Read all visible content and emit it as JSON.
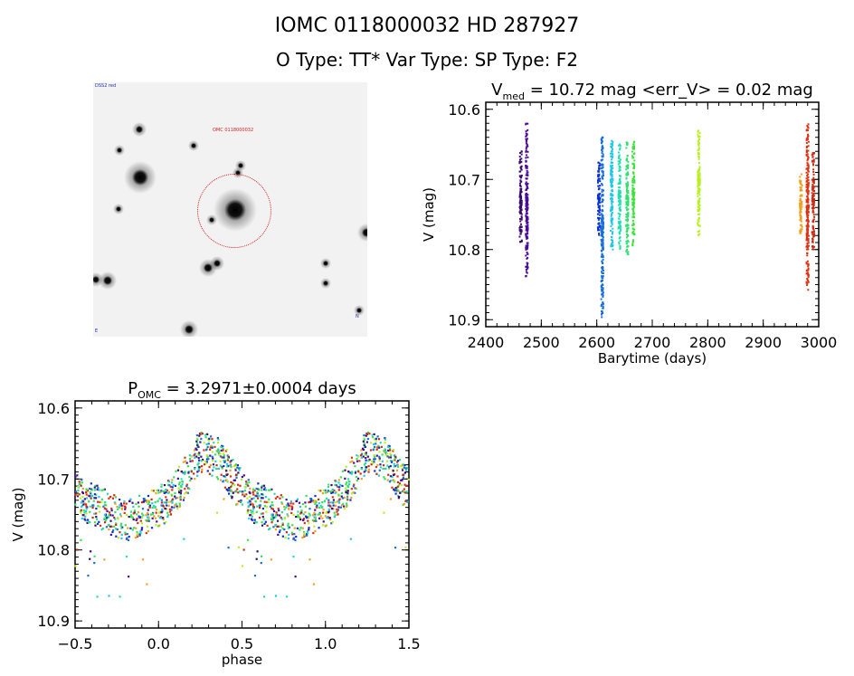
{
  "header": {
    "title": "IOMC 0118000032    HD 287927",
    "subtitle": "O Type: TT*  Var Type:    SP Type: F2"
  },
  "image_panel": {
    "type": "star-field finder chart",
    "labels": [
      "DSS2 red",
      "OMC 0118000032",
      "N",
      "E"
    ],
    "aperture_color": "#d02020"
  },
  "chart_data": [
    {
      "type": "scatter",
      "title": "V_med = 10.72 mag <err_V> = 0.02 mag",
      "title_main": "V",
      "title_sub": "med",
      "title_rest": " = 10.72 mag <err_V> = 0.02 mag",
      "xlabel": "Barytime (days)",
      "ylabel": "V (mag)",
      "xlim": [
        2400,
        3000
      ],
      "ylim": [
        10.59,
        10.91
      ],
      "y_inverted": true,
      "xticks": [
        "2400",
        "2500",
        "2600",
        "2700",
        "2800",
        "2900",
        "3000"
      ],
      "yticks": [
        "10.6",
        "10.7",
        "10.8",
        "10.9"
      ],
      "color_scale": "rainbow by time",
      "series": [
        {
          "t": 2463,
          "vmin": 10.66,
          "vmax": 10.79,
          "color": "#3a0a70"
        },
        {
          "t": 2474,
          "vmin": 10.62,
          "vmax": 10.84,
          "color": "#4a0a9a"
        },
        {
          "t": 2604,
          "vmin": 10.675,
          "vmax": 10.78,
          "color": "#0a30d0"
        },
        {
          "t": 2610,
          "vmin": 10.64,
          "vmax": 10.9,
          "color": "#1a70d8"
        },
        {
          "t": 2627,
          "vmin": 10.645,
          "vmax": 10.8,
          "color": "#20c8e8"
        },
        {
          "t": 2641,
          "vmin": 10.65,
          "vmax": 10.8,
          "color": "#20e0b0"
        },
        {
          "t": 2655,
          "vmin": 10.645,
          "vmax": 10.81,
          "color": "#30e070"
        },
        {
          "t": 2666,
          "vmin": 10.645,
          "vmax": 10.795,
          "color": "#40e040"
        },
        {
          "t": 2784,
          "vmin": 10.63,
          "vmax": 10.78,
          "color": "#b8f020"
        },
        {
          "t": 2968,
          "vmin": 10.69,
          "vmax": 10.78,
          "color": "#f0a020"
        },
        {
          "t": 2980,
          "vmin": 10.62,
          "vmax": 10.86,
          "color": "#e03010"
        },
        {
          "t": 2990,
          "vmin": 10.66,
          "vmax": 10.8,
          "color": "#d02810"
        }
      ]
    },
    {
      "type": "scatter",
      "title": "P_OMC = 3.2971±0.0004 days",
      "title_main": "P",
      "title_sub": "OMC",
      "title_rest": " = 3.2971±0.0004 days",
      "xlabel": "phase",
      "ylabel": "V (mag)",
      "xlim": [
        -0.5,
        1.5
      ],
      "ylim": [
        10.59,
        10.91
      ],
      "y_inverted": true,
      "xticks": [
        "−0.5",
        "0.0",
        "0.5",
        "1.0",
        "1.5"
      ],
      "yticks": [
        "10.6",
        "10.7",
        "10.8",
        "10.9"
      ],
      "period_days": 3.2971,
      "phase_curve": {
        "phase": [
          0.0,
          0.1,
          0.2,
          0.25,
          0.35,
          0.45,
          0.55,
          0.65,
          0.8,
          0.9
        ],
        "v": [
          10.74,
          10.72,
          10.68,
          10.66,
          10.67,
          10.7,
          10.73,
          10.74,
          10.76,
          10.75
        ]
      }
    }
  ]
}
